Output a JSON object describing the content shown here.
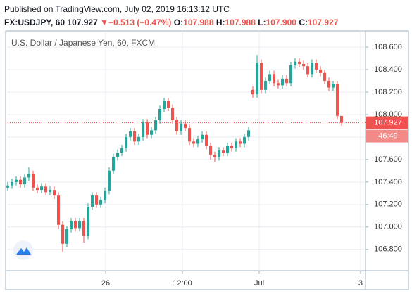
{
  "header": {
    "published": "Published on TradingView.com, July 02, 2019 16:13:12 UTC",
    "symbol": "FX:USDJPY, 60",
    "price": "107.927",
    "arrow": "▼",
    "change": "−0.513 (−0.47%)",
    "open_label": "O:",
    "open": "107.988",
    "high_label": "H:",
    "high": "107.988",
    "low_label": "L:",
    "low": "107.900",
    "close_label": "C:",
    "close": "107.927"
  },
  "chart_data": {
    "type": "candlestick",
    "title": "U.S. Dollar / Japanese Yen, 60, FXCM",
    "x": [
      0,
      1,
      2,
      3,
      4,
      5,
      6,
      7,
      8,
      9,
      10,
      11,
      12,
      13,
      14,
      15,
      16,
      17,
      18,
      19,
      20,
      21,
      22,
      23,
      24,
      25,
      26,
      27,
      28,
      29,
      30,
      31,
      32,
      33,
      34,
      35,
      36,
      37,
      38,
      39,
      40,
      41,
      42,
      43,
      44,
      45,
      46,
      47,
      48,
      49,
      50,
      51,
      52,
      53,
      54,
      55,
      56,
      57,
      58,
      59,
      60,
      61,
      62,
      63,
      64,
      65,
      66,
      67,
      68,
      69,
      70,
      71,
      72,
      73,
      74,
      75,
      76,
      77,
      78,
      79
    ],
    "open": [
      107.35,
      107.37,
      107.4,
      107.42,
      107.38,
      107.44,
      107.47,
      107.35,
      107.33,
      107.36,
      107.31,
      107.33,
      107.28,
      107.02,
      106.85,
      106.98,
      107.05,
      106.99,
      107.05,
      106.92,
      107.18,
      107.28,
      107.2,
      107.24,
      107.32,
      107.5,
      107.62,
      107.66,
      107.7,
      107.8,
      107.85,
      107.76,
      107.8,
      107.93,
      107.82,
      107.86,
      107.95,
      108.05,
      108.12,
      108.06,
      107.95,
      107.85,
      107.92,
      107.88,
      107.76,
      107.74,
      107.78,
      107.82,
      107.72,
      107.64,
      107.62,
      107.68,
      107.66,
      107.72,
      107.7,
      107.76,
      107.74,
      107.8,
      108.22,
      108.18,
      108.46,
      108.22,
      108.3,
      108.36,
      108.28,
      108.26,
      108.32,
      108.28,
      108.44,
      108.47,
      108.45,
      108.43,
      108.36,
      108.46,
      108.4,
      108.37,
      108.3,
      108.24,
      108.27,
      107.988
    ],
    "high": [
      107.4,
      107.43,
      107.45,
      107.45,
      107.47,
      107.53,
      107.5,
      107.38,
      107.39,
      107.39,
      107.36,
      107.36,
      107.31,
      107.05,
      107.01,
      107.08,
      107.08,
      107.08,
      107.08,
      107.21,
      107.31,
      107.31,
      107.27,
      107.35,
      107.53,
      107.65,
      107.69,
      107.73,
      107.83,
      107.88,
      107.88,
      107.83,
      107.96,
      107.96,
      107.89,
      107.98,
      108.08,
      108.15,
      108.15,
      108.09,
      107.98,
      107.95,
      107.95,
      107.91,
      107.79,
      107.81,
      107.85,
      107.85,
      107.75,
      107.67,
      107.71,
      107.71,
      107.75,
      107.75,
      107.79,
      107.79,
      107.83,
      107.89,
      108.25,
      108.53,
      108.49,
      108.33,
      108.39,
      108.39,
      108.31,
      108.35,
      108.35,
      108.47,
      108.5,
      108.5,
      108.48,
      108.46,
      108.49,
      108.49,
      108.43,
      108.4,
      108.33,
      108.3,
      108.3,
      107.988
    ],
    "low": [
      107.32,
      107.34,
      107.37,
      107.35,
      107.35,
      107.41,
      107.32,
      107.3,
      107.3,
      107.28,
      107.28,
      107.25,
      106.98,
      106.78,
      106.82,
      106.95,
      106.96,
      106.96,
      106.86,
      106.89,
      107.15,
      107.17,
      107.17,
      107.21,
      107.29,
      107.47,
      107.59,
      107.63,
      107.67,
      107.77,
      107.73,
      107.73,
      107.77,
      107.79,
      107.79,
      107.83,
      107.92,
      108.02,
      108.03,
      107.92,
      107.82,
      107.82,
      107.85,
      107.73,
      107.71,
      107.71,
      107.75,
      107.69,
      107.6,
      107.58,
      107.59,
      107.63,
      107.63,
      107.67,
      107.67,
      107.71,
      107.71,
      107.77,
      108.15,
      108.15,
      108.19,
      108.19,
      108.27,
      108.25,
      108.23,
      108.23,
      108.25,
      108.25,
      108.41,
      108.42,
      108.4,
      108.33,
      108.33,
      108.37,
      108.34,
      108.27,
      108.21,
      108.21,
      107.96,
      107.9
    ],
    "close": [
      107.37,
      107.4,
      107.42,
      107.38,
      107.44,
      107.47,
      107.35,
      107.33,
      107.36,
      107.31,
      107.33,
      107.28,
      107.02,
      106.85,
      106.98,
      107.05,
      106.99,
      107.05,
      106.92,
      107.18,
      107.28,
      107.2,
      107.24,
      107.32,
      107.5,
      107.62,
      107.66,
      107.7,
      107.8,
      107.85,
      107.76,
      107.8,
      107.93,
      107.82,
      107.86,
      107.95,
      108.05,
      108.12,
      108.06,
      107.95,
      107.85,
      107.92,
      107.88,
      107.76,
      107.74,
      107.78,
      107.82,
      107.72,
      107.64,
      107.62,
      107.68,
      107.66,
      107.72,
      107.7,
      107.76,
      107.74,
      107.8,
      107.86,
      108.18,
      108.46,
      108.22,
      108.3,
      108.36,
      108.28,
      108.26,
      108.32,
      108.28,
      108.44,
      108.47,
      108.45,
      108.43,
      108.36,
      108.46,
      108.4,
      108.37,
      108.3,
      108.24,
      108.27,
      107.988,
      107.927
    ],
    "up_color": "#26a69a",
    "down_color": "#ef5350",
    "xlim": [
      -0.5,
      84.67
    ],
    "xticks": [
      {
        "value": 23.17,
        "label": "26"
      },
      {
        "value": 41.33,
        "label": "12:00"
      },
      {
        "value": 59.5,
        "label": "Jul"
      },
      {
        "value": 83.5,
        "label": "3"
      }
    ],
    "ylim": [
      106.611,
      108.744
    ],
    "yticks": [
      {
        "value": 106.8,
        "label": "106.800"
      },
      {
        "value": 107.0,
        "label": "107.000"
      },
      {
        "value": 107.2,
        "label": "107.200"
      },
      {
        "value": 107.4,
        "label": "107.400"
      },
      {
        "value": 107.6,
        "label": "107.600"
      },
      {
        "value": 107.8,
        "label": "107.800"
      },
      {
        "value": 108.0,
        "label": "108.000"
      },
      {
        "value": 108.2,
        "label": "108.200"
      },
      {
        "value": 108.4,
        "label": "108.400"
      },
      {
        "value": 108.6,
        "label": "108.600"
      }
    ],
    "grid": true,
    "last_price": 107.927,
    "countdown": "46:49"
  }
}
